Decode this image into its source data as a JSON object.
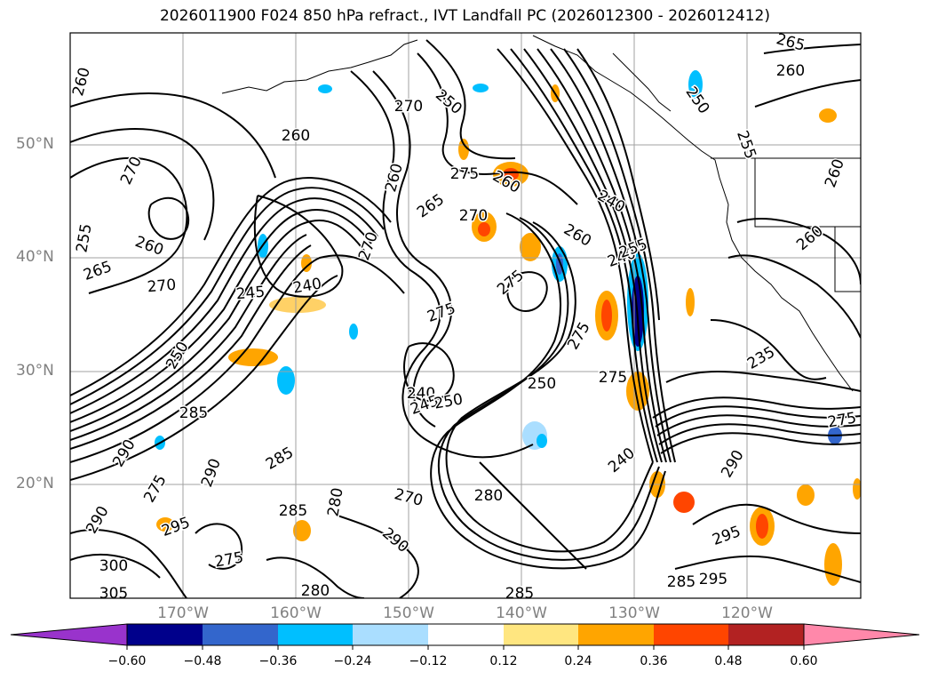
{
  "title": "2026011900 F024 850 hPa refract., IVT Landfall PC (2026012300 - 2026012412)",
  "map": {
    "lat_labels": [
      "50°N",
      "40°N",
      "30°N",
      "20°N"
    ],
    "lon_labels": [
      "170°W",
      "160°W",
      "150°W",
      "140°W",
      "130°W",
      "120°W"
    ],
    "contour_labels": [
      "260",
      "270",
      "255",
      "265",
      "260",
      "270",
      "245",
      "240",
      "250",
      "260",
      "270",
      "270",
      "250",
      "260",
      "265",
      "275",
      "270",
      "260",
      "275",
      "275",
      "240",
      "260",
      "240",
      "275",
      "240",
      "245",
      "250",
      "275",
      "250",
      "285",
      "290",
      "285",
      "290",
      "275",
      "280",
      "285",
      "290",
      "270",
      "280",
      "275",
      "300",
      "305",
      "280",
      "295",
      "285",
      "290",
      "285",
      "295",
      "295",
      "290",
      "265",
      "260",
      "250",
      "255",
      "260",
      "260",
      "235",
      "275",
      "255",
      "240"
    ]
  },
  "colorbar": {
    "ticks": [
      "−0.60",
      "−0.48",
      "−0.36",
      "−0.24",
      "−0.12",
      "0.12",
      "0.24",
      "0.36",
      "0.48",
      "0.60"
    ],
    "colors": [
      "#9933cc",
      "#00008b",
      "#3366cc",
      "#00bfff",
      "#aadeff",
      "#ffffff",
      "#ffe680",
      "#ffa500",
      "#ff4500",
      "#b22222",
      "#ff88aa"
    ]
  }
}
